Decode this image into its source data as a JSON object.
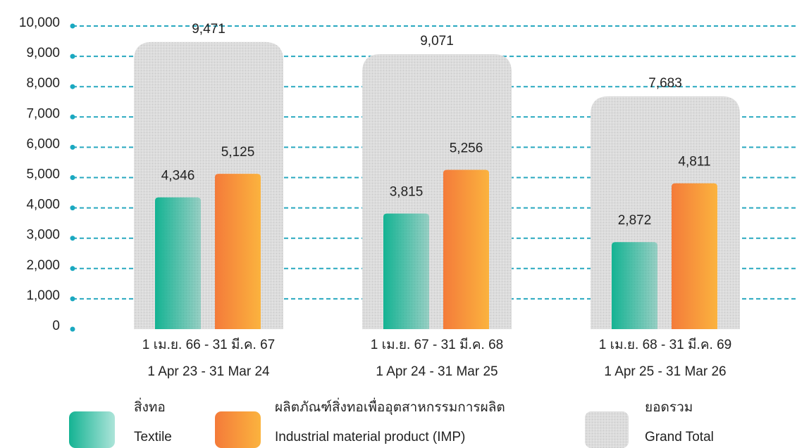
{
  "chart_data": {
    "type": "bar",
    "categories": [
      [
        "1 เม.ย. 66 - 31 มี.ค. 67",
        "1 Apr 23 - 31 Mar 24"
      ],
      [
        "1 เม.ย. 67 - 31 มี.ค. 68",
        "1 Apr 24 - 31 Mar 25"
      ],
      [
        "1 เม.ย. 68 - 31 มี.ค. 69",
        "1 Apr 25 - 31 Mar 26"
      ]
    ],
    "series": [
      {
        "name": [
          "สิ่งทอ",
          "Textile"
        ],
        "color": "#14b393",
        "values": [
          4346,
          3815,
          2872
        ],
        "value_labels": [
          "4,346",
          "3,815",
          "2,872"
        ]
      },
      {
        "name": [
          "ผลิตภัณฑ์สิ่งทอเพื่ออุตสาหกรรมการผลิต",
          "Industrial material product (IMP)"
        ],
        "color": "#f47b3a",
        "values": [
          5125,
          5256,
          4811
        ],
        "value_labels": [
          "5,125",
          "5,256",
          "4,811"
        ]
      },
      {
        "name": [
          "ยอดรวม",
          "Grand Total"
        ],
        "color": "#dcdcdc",
        "values": [
          9471,
          9071,
          7683
        ],
        "value_labels": [
          "9,471",
          "9,071",
          "7,683"
        ]
      }
    ],
    "ylim": [
      0,
      10000
    ],
    "yticks": [
      0,
      {
        "value": 1000,
        "label": "1,000"
      },
      {
        "value": 2000,
        "label": "2,000"
      },
      {
        "value": 3000,
        "label": "3,000"
      },
      {
        "value": 4000,
        "label": "4,000"
      },
      {
        "value": 5000,
        "label": "5,000"
      },
      {
        "value": 6000,
        "label": "6,000"
      },
      {
        "value": 7000,
        "label": "7,000"
      },
      {
        "value": 8000,
        "label": "8,000"
      },
      {
        "value": 9000,
        "label": "9,000"
      },
      {
        "value": 10000,
        "label": "10,000"
      }
    ],
    "grid": true,
    "legend": "bottom"
  }
}
